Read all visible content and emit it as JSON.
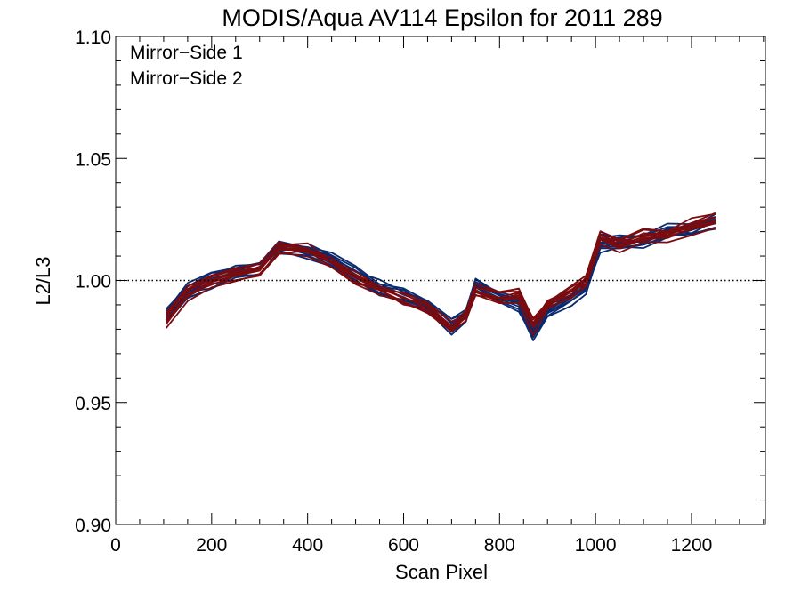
{
  "chart_data": {
    "type": "line",
    "title": "MODIS/Aqua AV114 Epsilon for 2011 289",
    "xlabel": "Scan Pixel",
    "ylabel": "L2/L3",
    "xlim": [
      0,
      1354
    ],
    "ylim": [
      0.9,
      1.1
    ],
    "xticks": [
      0,
      200,
      400,
      600,
      800,
      1000,
      1200
    ],
    "yticks": [
      0.9,
      0.95,
      1.0,
      1.05,
      1.1
    ],
    "xtick_labels": [
      "0",
      "200",
      "400",
      "600",
      "800",
      "1000",
      "1200"
    ],
    "ytick_labels": [
      "0.90",
      "0.95",
      "1.00",
      "1.05",
      "1.10"
    ],
    "x_minor_step": 50,
    "y_minor_step": 0.01,
    "reference_line": {
      "y": 1.0,
      "style": "dotted"
    },
    "legend": {
      "placement": "top-left"
    },
    "grid": false,
    "x": [
      105,
      150,
      200,
      250,
      300,
      340,
      400,
      450,
      500,
      550,
      600,
      650,
      700,
      730,
      750,
      800,
      840,
      870,
      900,
      950,
      980,
      1010,
      1050,
      1100,
      1150,
      1200,
      1250
    ],
    "series": [
      {
        "name": "Mirror−Side 1",
        "color": "#0b2a6e",
        "count": 10,
        "spread": 0.005,
        "values": [
          0.985,
          0.996,
          1.0,
          1.003,
          1.005,
          1.014,
          1.012,
          1.008,
          1.002,
          0.997,
          0.993,
          0.989,
          0.981,
          0.986,
          0.998,
          0.993,
          0.991,
          0.979,
          0.988,
          0.993,
          0.998,
          1.015,
          1.016,
          1.016,
          1.02,
          1.021,
          1.024
        ]
      },
      {
        "name": "Mirror−Side 2",
        "color": "#7a0c10",
        "count": 10,
        "spread": 0.005,
        "values": [
          0.984,
          0.995,
          0.999,
          1.002,
          1.004,
          1.013,
          1.012,
          1.007,
          1.001,
          0.996,
          0.992,
          0.988,
          0.98,
          0.985,
          0.996,
          0.992,
          0.994,
          0.981,
          0.99,
          0.995,
          1.0,
          1.017,
          1.014,
          1.018,
          1.019,
          1.022,
          1.025
        ]
      }
    ]
  }
}
